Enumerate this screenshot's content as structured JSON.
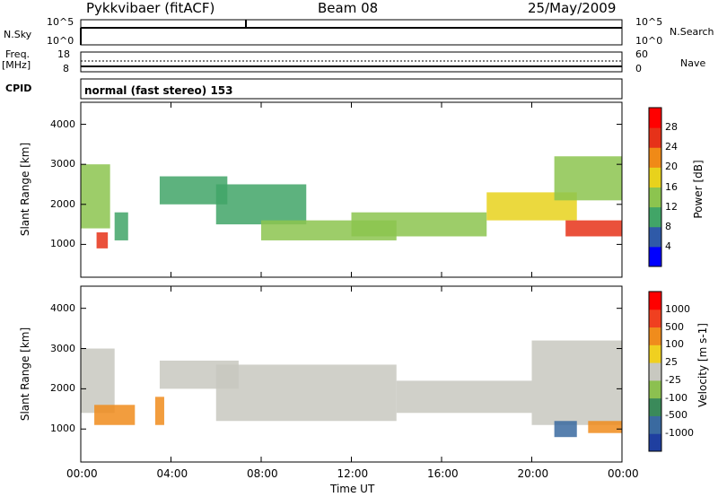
{
  "header": {
    "title": "Pykkvibaer (fitACF)",
    "beam": "Beam 08",
    "date": "25/May/2009"
  },
  "top_panels": {
    "nsky_label": "N.Sky",
    "nsky_ticks": [
      "10^5",
      "10^0"
    ],
    "nsearch_label": "N.Search",
    "nsearch_ticks": [
      "10^5",
      "10^0"
    ],
    "freq_label": "Freq.",
    "freq_unit": "[MHz]",
    "freq_ticks": [
      "18",
      "8"
    ],
    "nave_label": "Nave",
    "nave_ticks": [
      "60",
      "0"
    ],
    "cpid_label": "CPID",
    "cpid_value": "normal (fast stereo) 153"
  },
  "chart_data": [
    {
      "type": "heatmap",
      "name": "power-panel",
      "ylabel": "Slant Range [km]",
      "ylim": [
        180,
        4550
      ],
      "yticks": [
        1000,
        2000,
        3000,
        4000
      ],
      "xlim": [
        0,
        24
      ],
      "colorbar_label": "Power [dB]",
      "colorbar_ticks": [
        "28",
        "24",
        "20",
        "16",
        "12",
        "8",
        "4"
      ],
      "colors": [
        "#0000ff",
        "#2f5aa8",
        "#41a567",
        "#8cc44f",
        "#e8d21c",
        "#f08a17",
        "#e63219",
        "#ff0000"
      ],
      "bands": [
        {
          "x": [
            0.0,
            1.3
          ],
          "y": [
            1400,
            3000
          ],
          "level": 3
        },
        {
          "x": [
            0.7,
            1.2
          ],
          "y": [
            900,
            1300
          ],
          "level": 6
        },
        {
          "x": [
            1.5,
            2.1
          ],
          "y": [
            1100,
            1800
          ],
          "level": 2
        },
        {
          "x": [
            3.5,
            6.5
          ],
          "y": [
            2000,
            2700
          ],
          "level": 2
        },
        {
          "x": [
            6.0,
            10.0
          ],
          "y": [
            1500,
            2500
          ],
          "level": 2
        },
        {
          "x": [
            8.0,
            14.0
          ],
          "y": [
            1100,
            1600
          ],
          "level": 3
        },
        {
          "x": [
            12.0,
            18.0
          ],
          "y": [
            1200,
            1800
          ],
          "level": 3
        },
        {
          "x": [
            18.0,
            22.0
          ],
          "y": [
            1600,
            2300
          ],
          "level": 4
        },
        {
          "x": [
            21.5,
            24.0
          ],
          "y": [
            1200,
            1600
          ],
          "level": 6
        },
        {
          "x": [
            21.0,
            24.0
          ],
          "y": [
            2100,
            3200
          ],
          "level": 3
        }
      ]
    },
    {
      "type": "heatmap",
      "name": "velocity-panel",
      "ylabel": "Slant Range [km]",
      "ylim": [
        180,
        4550
      ],
      "yticks": [
        1000,
        2000,
        3000,
        4000
      ],
      "xlim": [
        0,
        24
      ],
      "xlabel": "Time UT",
      "xticks": [
        "00:00",
        "04:00",
        "08:00",
        "12:00",
        "16:00",
        "20:00",
        "00:00"
      ],
      "colorbar_label": "Velocity [m s-1]",
      "colorbar_ticks": [
        "1000",
        "500",
        "100",
        "25",
        "-25",
        "-100",
        "-500",
        "-1000"
      ],
      "colors": [
        "#1f3fa0",
        "#3a6aa0",
        "#3a8a5a",
        "#8cc050",
        "#c8c8c0",
        "#f0d020",
        "#f08c1c",
        "#f04020",
        "#ff0000"
      ],
      "bands": [
        {
          "x": [
            0.0,
            1.5
          ],
          "y": [
            1400,
            3000
          ],
          "level": 4
        },
        {
          "x": [
            0.6,
            2.4
          ],
          "y": [
            1100,
            1600
          ],
          "level": 6
        },
        {
          "x": [
            3.3,
            3.7
          ],
          "y": [
            1100,
            1800
          ],
          "level": 6
        },
        {
          "x": [
            3.5,
            7.0
          ],
          "y": [
            2000,
            2700
          ],
          "level": 4
        },
        {
          "x": [
            6.0,
            14.0
          ],
          "y": [
            1200,
            2600
          ],
          "level": 4
        },
        {
          "x": [
            14.0,
            20.0
          ],
          "y": [
            1400,
            2200
          ],
          "level": 4
        },
        {
          "x": [
            20.0,
            24.0
          ],
          "y": [
            1100,
            3200
          ],
          "level": 4
        },
        {
          "x": [
            21.0,
            22.0
          ],
          "y": [
            800,
            1200
          ],
          "level": 1
        },
        {
          "x": [
            22.5,
            24.0
          ],
          "y": [
            900,
            1200
          ],
          "level": 6
        }
      ]
    }
  ]
}
